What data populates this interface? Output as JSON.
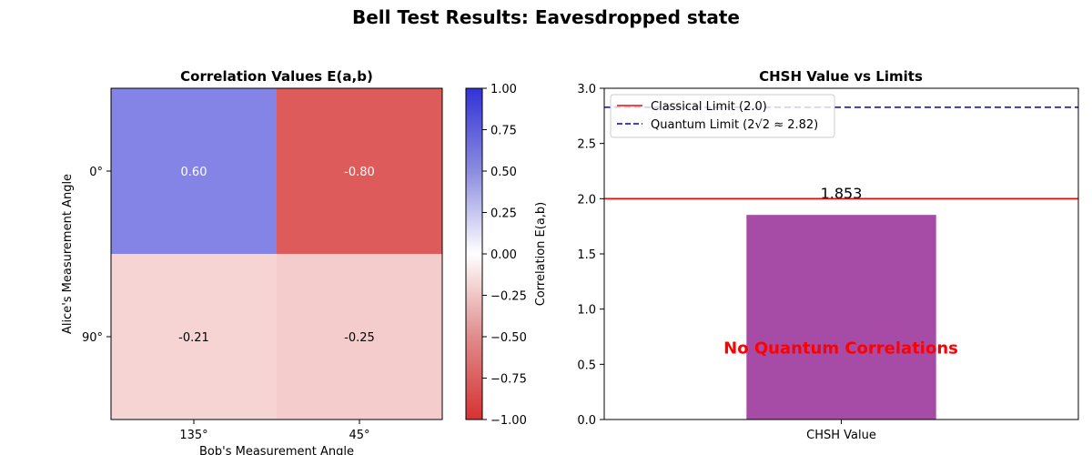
{
  "figure": {
    "suptitle": "Bell Test Results: Eavesdropped state"
  },
  "chart_data": [
    {
      "type": "heatmap",
      "title": "Correlation Values E(a,b)",
      "xlabel": "Bob's Measurement Angle",
      "ylabel": "Alice's Measurement Angle",
      "x_categories": [
        "135°",
        "45°"
      ],
      "y_categories": [
        "0°",
        "90°"
      ],
      "values": [
        [
          0.6,
          -0.8
        ],
        [
          -0.21,
          -0.25
        ]
      ],
      "value_labels": [
        [
          "0.60",
          "-0.80"
        ],
        [
          "-0.21",
          "-0.25"
        ]
      ],
      "colormap": "bwr_r",
      "vmin": -1.0,
      "vmax": 1.0,
      "colorbar": {
        "label": "Correlation E(a,b)",
        "ticks": [
          1.0,
          0.75,
          0.5,
          0.25,
          0.0,
          -0.25,
          -0.5,
          -0.75,
          -1.0
        ],
        "tick_labels": [
          "1.00",
          "0.75",
          "0.50",
          "0.25",
          "0.00",
          "−0.25",
          "−0.50",
          "−0.75",
          "−1.00"
        ]
      }
    },
    {
      "type": "bar",
      "title": "CHSH Value vs Limits",
      "categories": [
        "CHSH Value"
      ],
      "values": [
        1.853
      ],
      "value_label": "1.853",
      "bar_color": "#a64ca6",
      "ylim": [
        0,
        3.0
      ],
      "yticks": [
        "0.0",
        "0.5",
        "1.0",
        "1.5",
        "2.0",
        "2.5",
        "3.0"
      ],
      "reference_lines": [
        {
          "name": "Classical Limit (2.0)",
          "value": 2.0,
          "color": "#ff0000",
          "style": "solid"
        },
        {
          "name": "Quantum Limit (2√2 ≈ 2.82)",
          "value": 2.828,
          "color": "#0000cc",
          "style": "dashed"
        }
      ],
      "annotation": {
        "text": "No Quantum Correlations",
        "color": "#ff0000",
        "y": 0.55
      },
      "legend": "top-left",
      "grid": false
    }
  ]
}
